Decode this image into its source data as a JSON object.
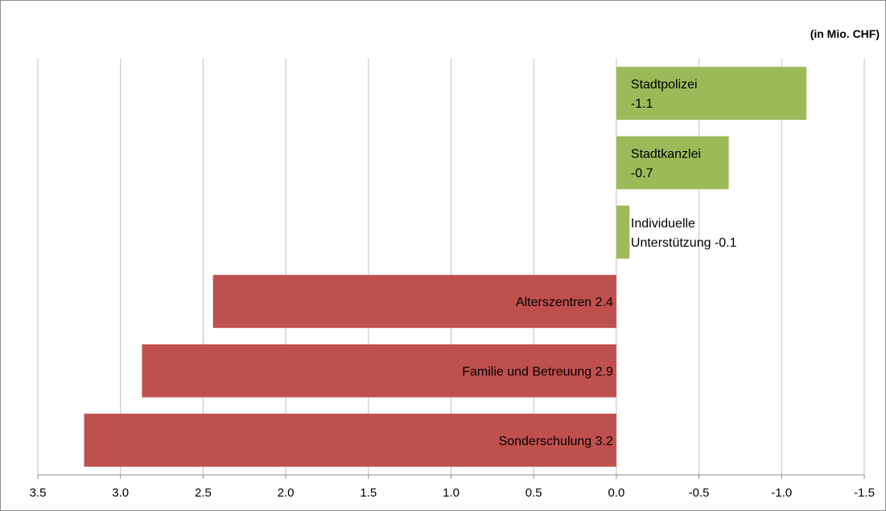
{
  "chart_data": {
    "type": "bar",
    "orientation": "horizontal",
    "unit_label": "(in Mio. CHF)",
    "x_axis": {
      "reversed": true,
      "range": [
        3.5,
        -1.5
      ],
      "ticks": [
        "3.5",
        "3.0",
        "2.5",
        "2.0",
        "1.5",
        "1.0",
        "0.5",
        "0.0",
        "-0.5",
        "-1.0",
        "-1.5"
      ]
    },
    "grid": true,
    "categories": [
      {
        "label_lines": [
          "Stadtpolizei",
          "-1.1"
        ],
        "value": -1.15,
        "color": "#9bbb59"
      },
      {
        "label_lines": [
          "Stadtkanzlei",
          "-0.7"
        ],
        "value": -0.68,
        "color": "#9bbb59"
      },
      {
        "label_lines": [
          "Individuelle",
          "Unterstützung -0.1"
        ],
        "value": -0.08,
        "color": "#9bbb59"
      },
      {
        "label_lines": [
          "Alterszentren 2.4"
        ],
        "value": 2.44,
        "color": "#c0504d"
      },
      {
        "label_lines": [
          "Familie und Betreuung 2.9"
        ],
        "value": 2.87,
        "color": "#c0504d"
      },
      {
        "label_lines": [
          "Sonderschulung 3.2"
        ],
        "value": 3.22,
        "color": "#c0504d"
      }
    ]
  }
}
